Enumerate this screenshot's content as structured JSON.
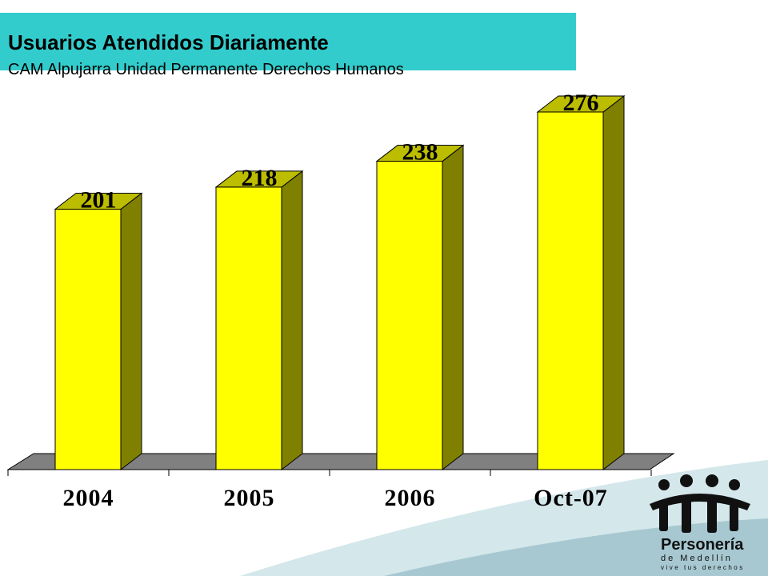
{
  "header": {
    "title": "Usuarios Atendidos Diariamente",
    "subtitle": "CAM Alpujarra Unidad Permanente Derechos Humanos"
  },
  "chart_data": {
    "type": "bar",
    "categories": [
      "2004",
      "2005",
      "2006",
      "Oct-07"
    ],
    "values": [
      201,
      218,
      238,
      276
    ],
    "title": "",
    "xlabel": "",
    "ylabel": "",
    "ylim": [
      0,
      300
    ],
    "grid": false,
    "three_d": true,
    "colors": {
      "bar_front": "#FFFF00",
      "bar_top": "#BDBD00",
      "bar_side": "#808000",
      "floor": "#808080"
    }
  },
  "logo": {
    "line1": "Personería",
    "line2": "de Medellín",
    "line3": "vive tus derechos"
  },
  "colors": {
    "header_bg": "#33CCCC",
    "swoosh_light": "#D4E7EB",
    "swoosh_dark": "#A7C8D1"
  }
}
